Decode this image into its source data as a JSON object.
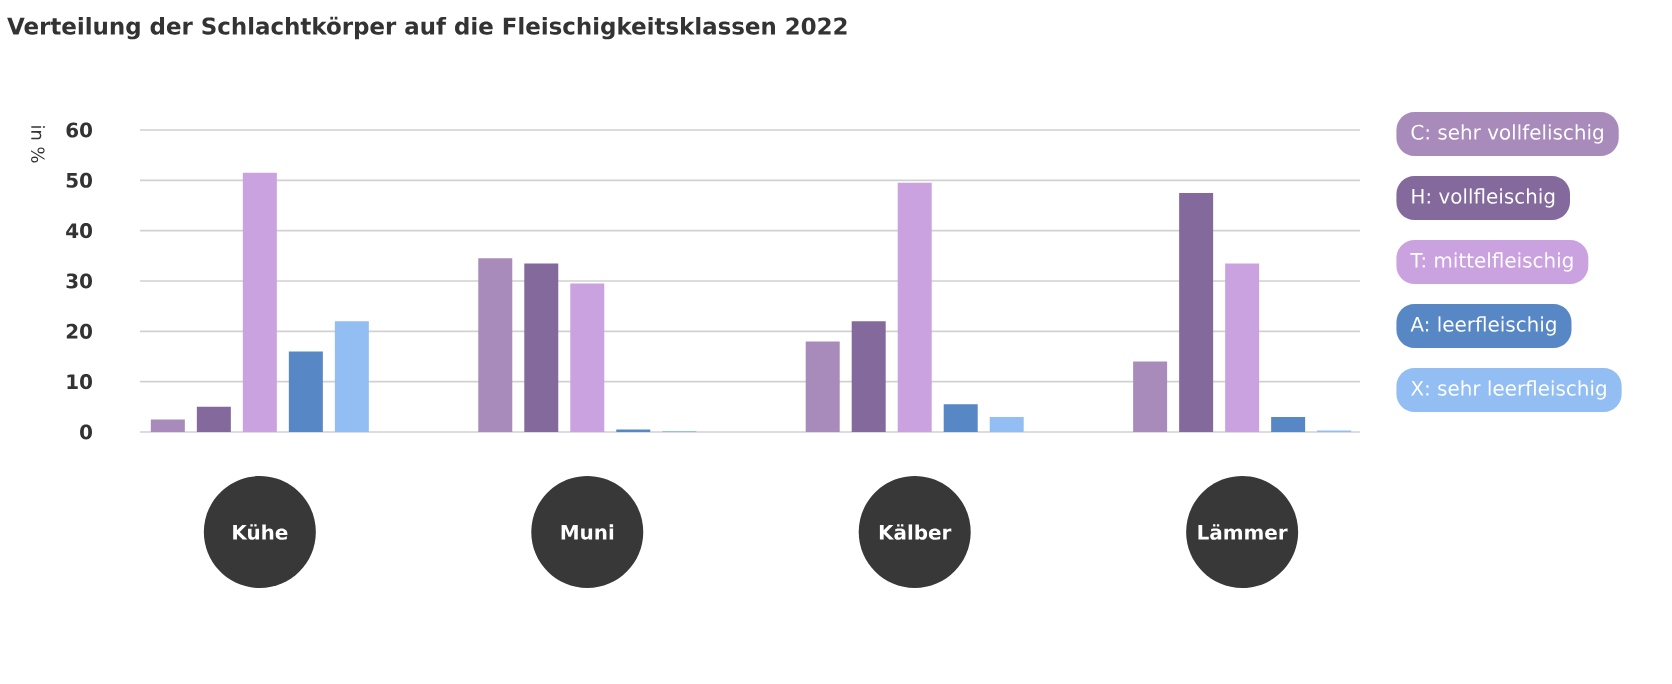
{
  "chart_data": {
    "type": "bar",
    "title": "Verteilung der Schlachtkörper auf die Fleischigkeitsklassen 2022",
    "ylabel": "in %",
    "categories": [
      "Kühe",
      "Muni",
      "Kälber",
      "Lämmer"
    ],
    "series": [
      {
        "name": "C: sehr vollfelischig",
        "color": "#a88bbb",
        "values": [
          2.5,
          34.5,
          18,
          14
        ]
      },
      {
        "name": "H: vollfleischig",
        "color": "#84699c",
        "values": [
          5,
          33.5,
          22,
          47.5
        ]
      },
      {
        "name": "T: mittelfleischig",
        "color": "#cba2e0",
        "values": [
          51.5,
          29.5,
          49.5,
          33.5
        ]
      },
      {
        "name": "A: leerfleischig",
        "color": "#5787c5",
        "values": [
          16,
          0.5,
          5.5,
          3
        ]
      },
      {
        "name": "X: sehr leerfleischig",
        "color": "#92bef3",
        "values": [
          22,
          0.2,
          3,
          0.3
        ]
      }
    ],
    "ylim": [
      0,
      60
    ],
    "yticks": [
      0,
      10,
      20,
      30,
      40,
      50,
      60
    ],
    "grid": "y",
    "legend": "right"
  }
}
